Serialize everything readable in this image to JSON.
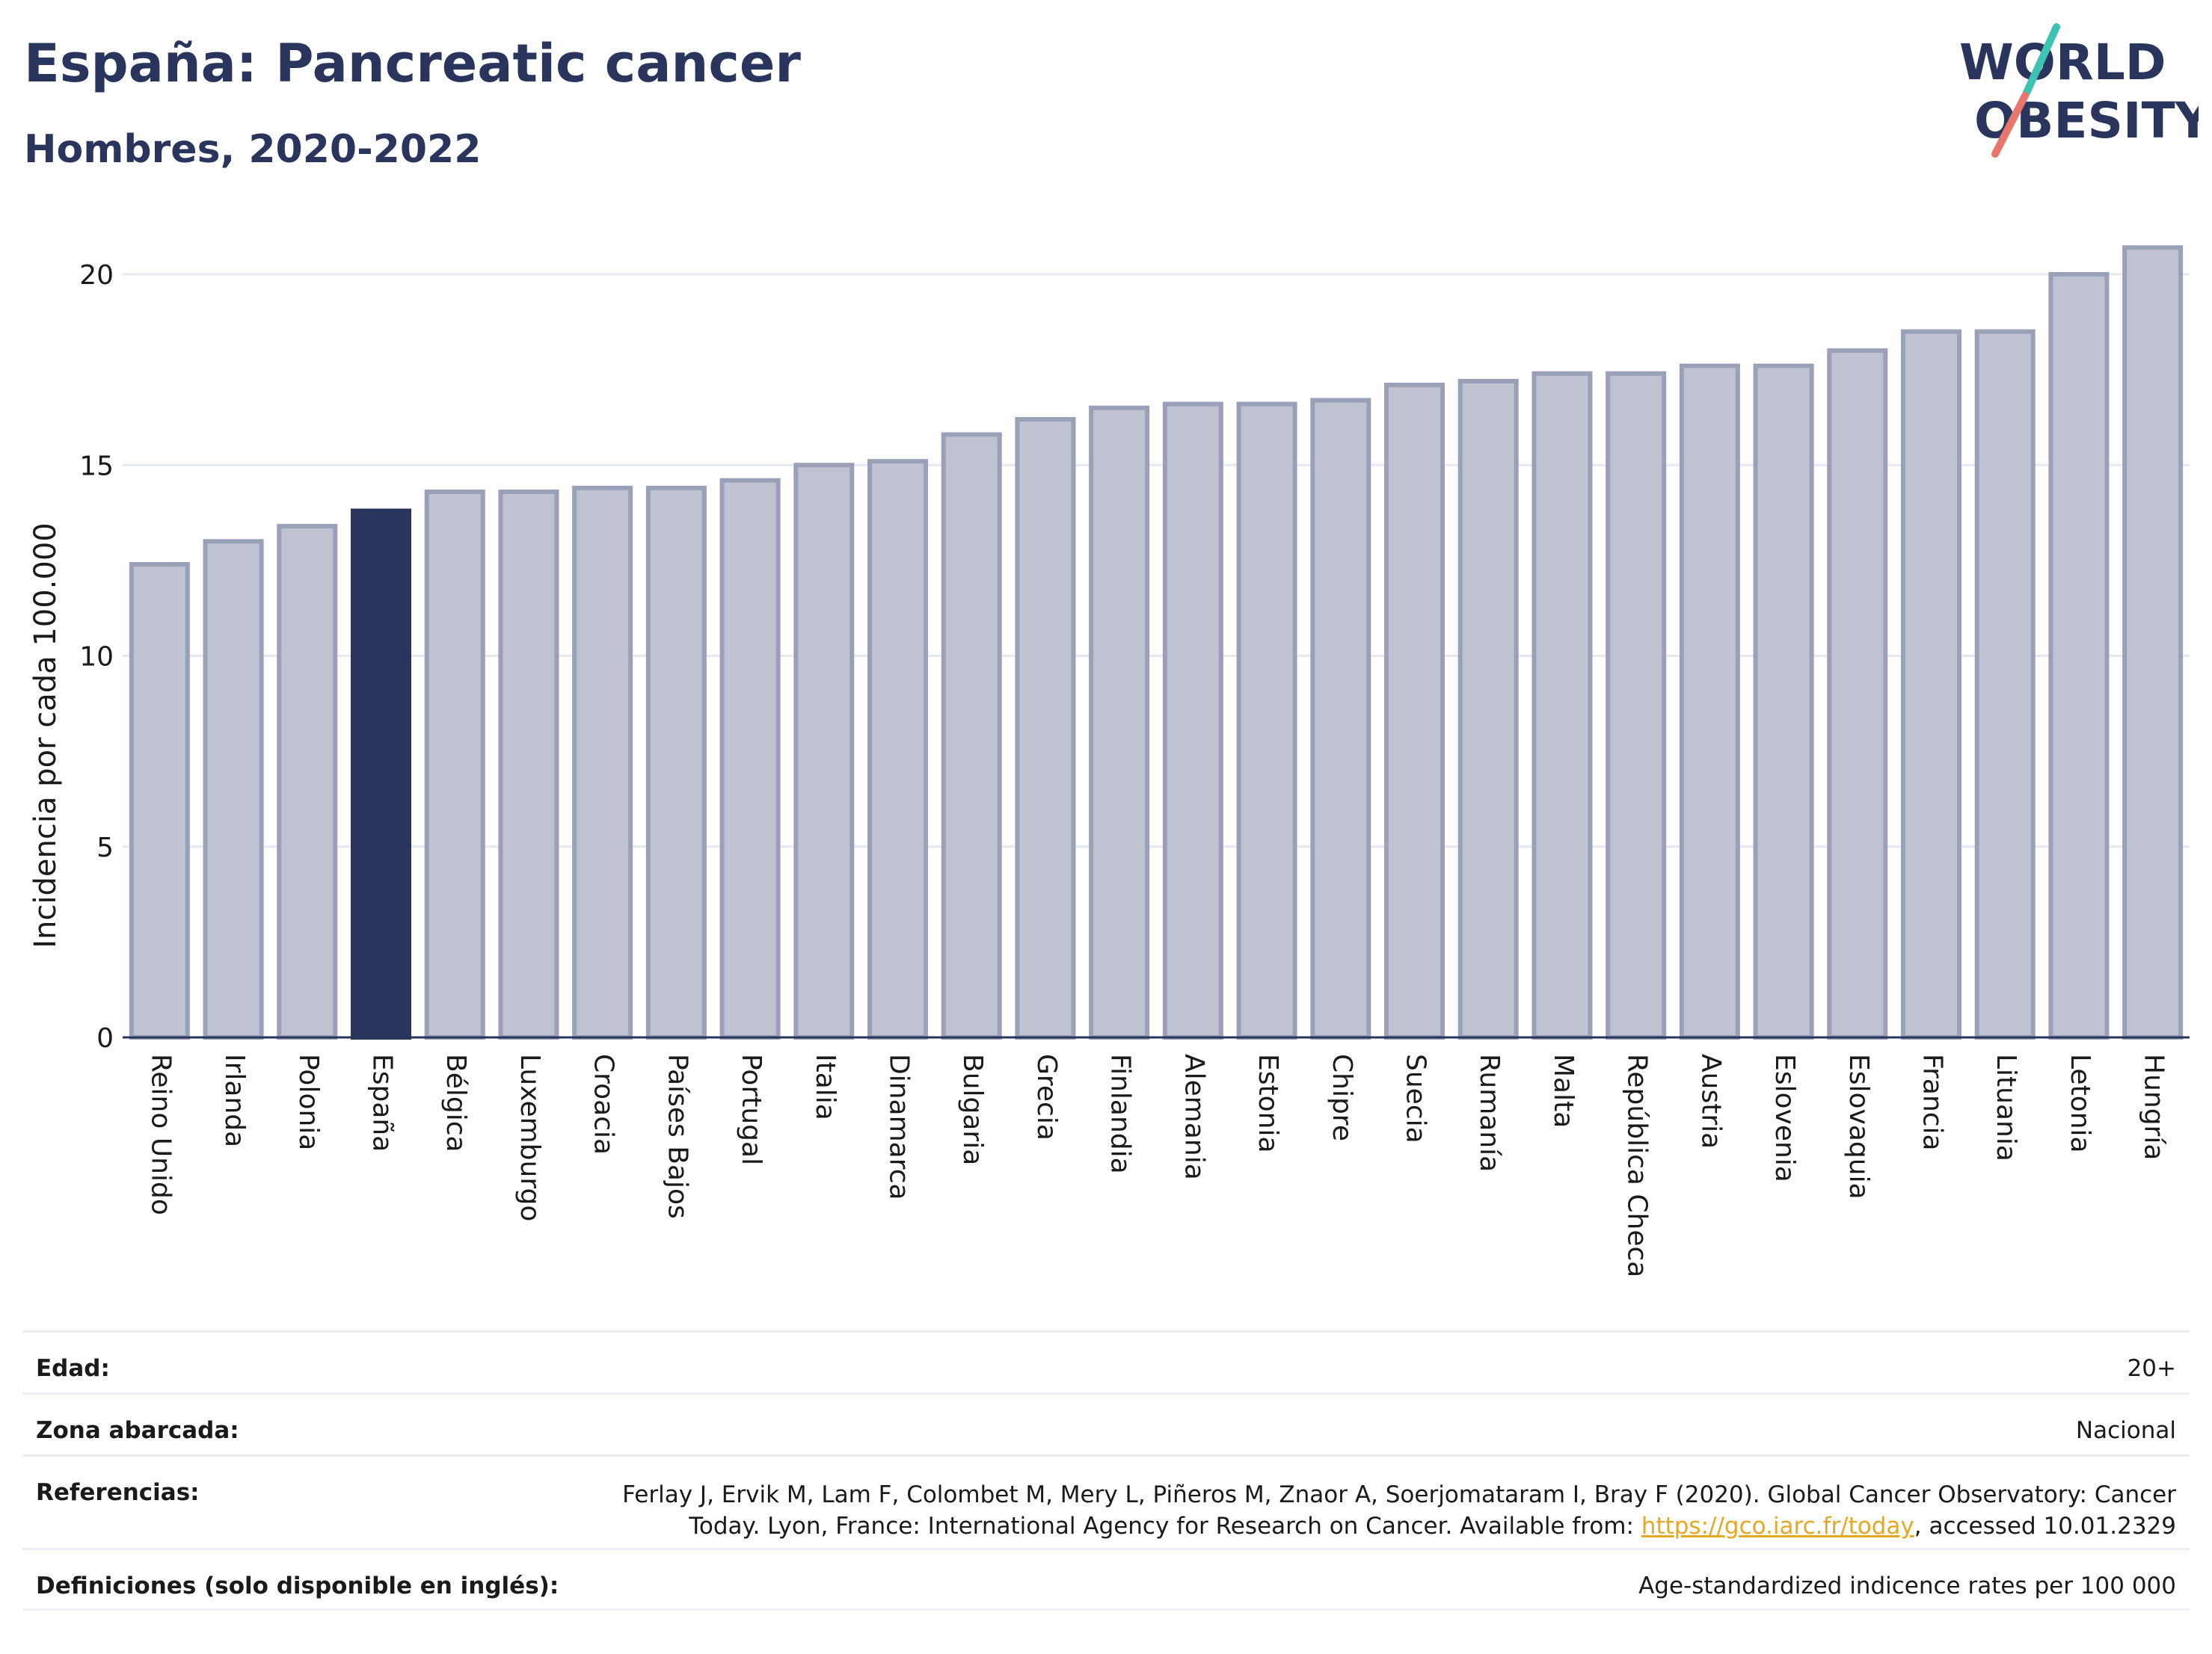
{
  "header": {
    "title": "España: Pancreatic cancer",
    "subtitle": "Hombres, 2020-2022",
    "logo_line1": "WORLD",
    "logo_line2": "OBESITY"
  },
  "colors": {
    "title": "#2a355e",
    "bar_fill": "#bfc2d0",
    "bar_stroke": "#9aa0b8",
    "highlight_fill": "#2a355e",
    "grid": "#e6e8ef",
    "logo_slash_teal": "#3cc3b4",
    "logo_slash_red": "#e8766b",
    "link": "#e5a823"
  },
  "chart_data": {
    "type": "bar",
    "ylabel": "Incidencia por cada 100.000",
    "ylim": [
      0,
      21
    ],
    "yticks": [
      0,
      5,
      10,
      15,
      20
    ],
    "grid": true,
    "highlight": "España",
    "categories": [
      "Reino Unido",
      "Irlanda",
      "Polonia",
      "España",
      "Bélgica",
      "Luxemburgo",
      "Croacia",
      "Países Bajos",
      "Portugal",
      "Italia",
      "Dinamarca",
      "Bulgaria",
      "Grecia",
      "Finlandia",
      "Alemania",
      "Estonia",
      "Chipre",
      "Suecia",
      "Rumanía",
      "Malta",
      "República Checa",
      "Austria",
      "Eslovenia",
      "Eslovaquia",
      "Francia",
      "Lituania",
      "Letonia",
      "Hungría"
    ],
    "values": [
      12.4,
      13.0,
      13.4,
      13.8,
      14.3,
      14.3,
      14.4,
      14.4,
      14.6,
      15.0,
      15.1,
      15.8,
      16.2,
      16.5,
      16.6,
      16.6,
      16.7,
      17.1,
      17.2,
      17.4,
      17.4,
      17.6,
      17.6,
      18.0,
      18.5,
      18.5,
      20.0,
      20.7
    ]
  },
  "meta": {
    "age_label": "Edad:",
    "age_value": "20+",
    "zone_label": "Zona abarcada:",
    "zone_value": "Nacional",
    "ref_label": "Referencias:",
    "ref_line1": "Ferlay J, Ervik M, Lam F, Colombet M, Mery L, Piñeros M, Znaor A, Soerjomataram I, Bray F (2020). Global Cancer Observatory: Cancer",
    "ref_line2_pre": "Today. Lyon, France: International Agency for Research on Cancer. Available from: ",
    "ref_link": "https://gco.iarc.fr/today",
    "ref_line2_post": ", accessed 10.01.2329",
    "def_label": "Definiciones (solo disponible en inglés):",
    "def_value": "Age-standardized indicence rates per 100 000"
  }
}
